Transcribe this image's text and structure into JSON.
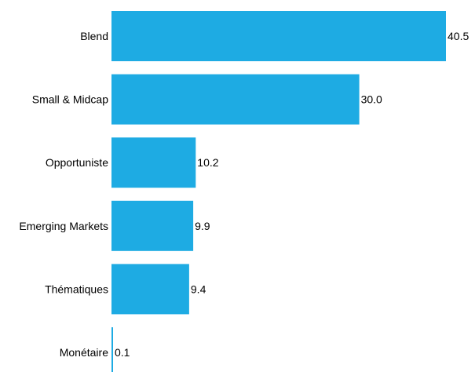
{
  "chart_data": {
    "type": "bar",
    "orientation": "horizontal",
    "categories": [
      "Blend",
      "Small & Midcap",
      "Opportuniste",
      "Emerging Markets",
      "Thématiques",
      "Monétaire"
    ],
    "values": [
      40.5,
      30.0,
      10.2,
      9.9,
      9.4,
      0.1
    ],
    "value_labels": [
      "40.5",
      "30.0",
      "10.2",
      "9.9",
      "9.4",
      "0.1"
    ],
    "title": "",
    "xlabel": "",
    "ylabel": "",
    "xlim": [
      0,
      40.5
    ],
    "grid": false,
    "legend": "none",
    "bar_color": "#1EABE3"
  }
}
